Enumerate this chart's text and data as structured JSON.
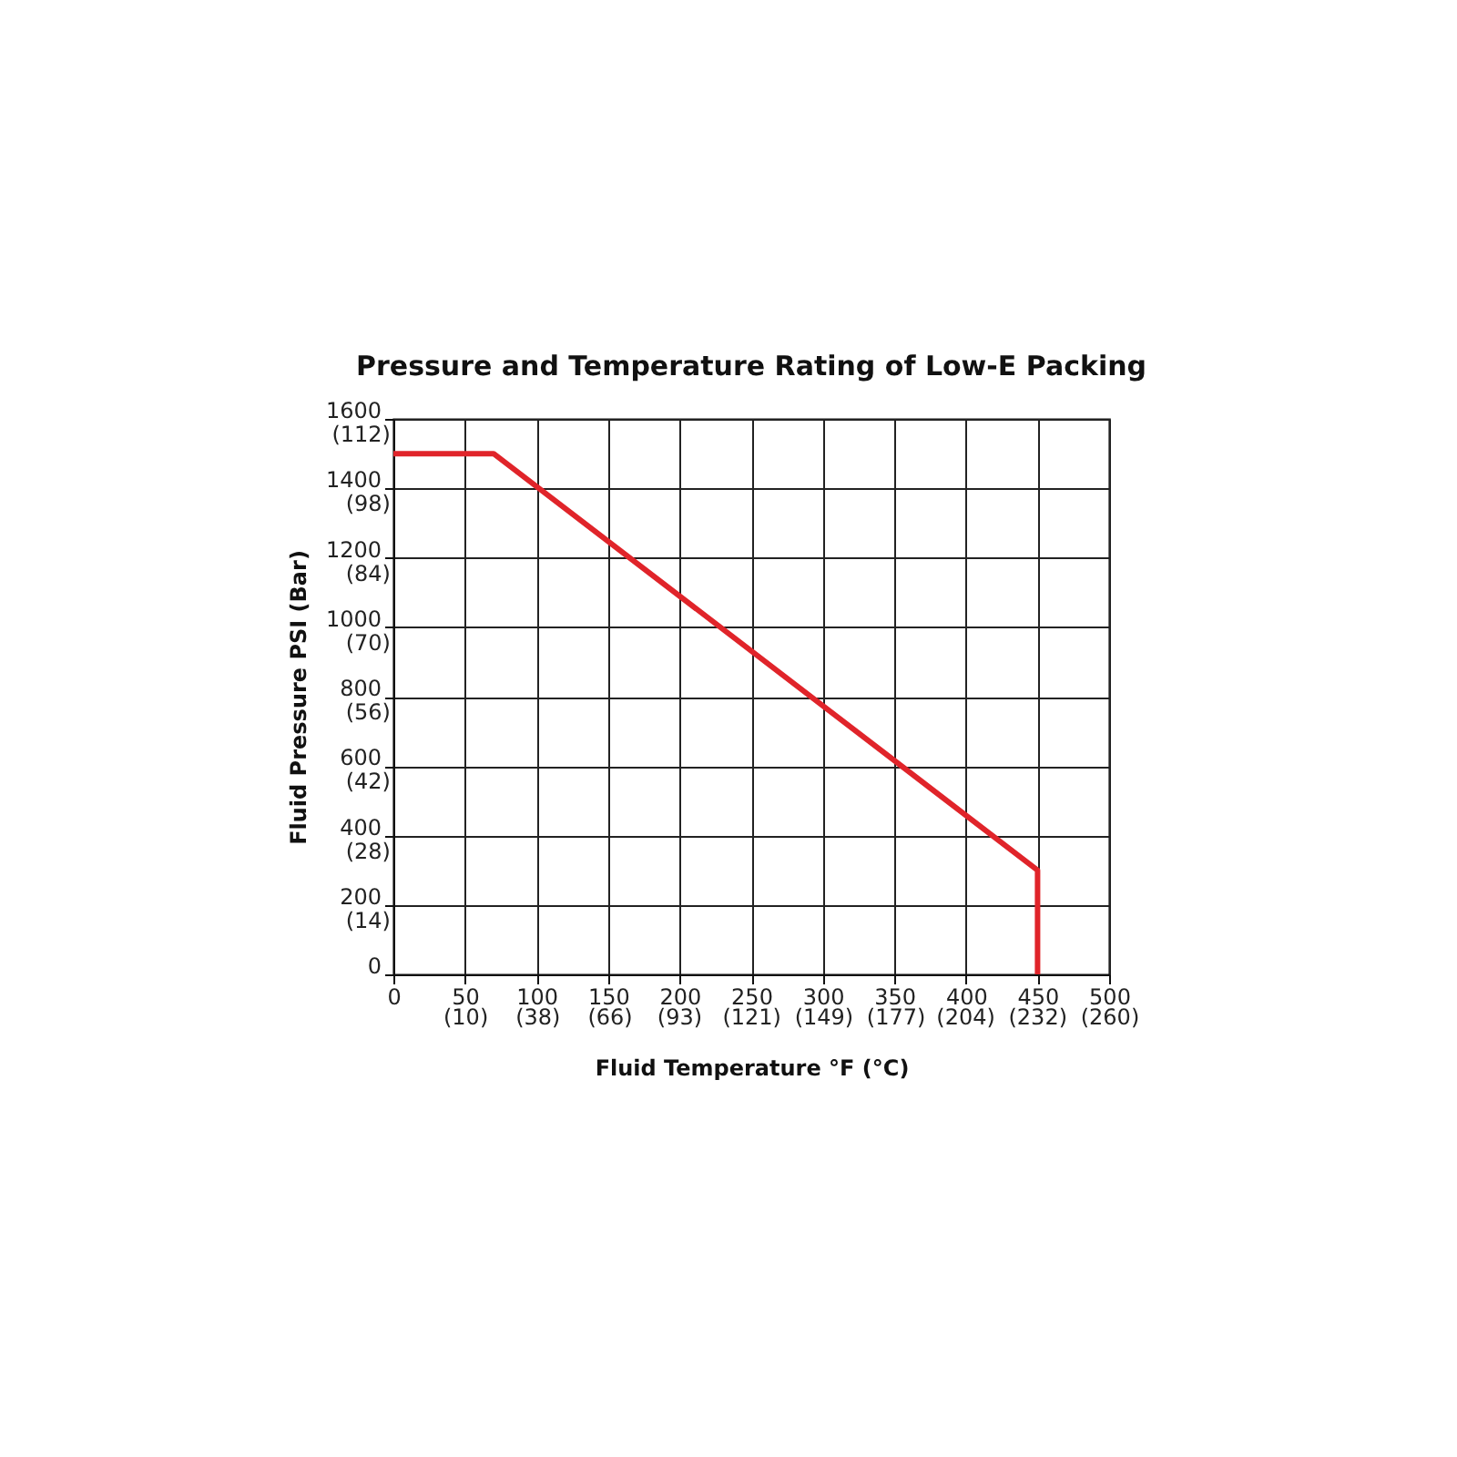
{
  "chart_data": {
    "type": "line",
    "title": "Pressure and Temperature Rating of Low-E Packing",
    "xlabel": "Fluid Temperature °F (°C)",
    "ylabel": "Fluid Pressure PSI (Bar)",
    "series": [
      {
        "x": [
          0,
          70,
          450,
          450
        ],
        "values": [
          1500,
          1500,
          300,
          0
        ],
        "color": "#e0242a"
      }
    ],
    "xlim": [
      0,
      500
    ],
    "xticks": [
      0,
      50,
      100,
      150,
      200,
      250,
      300,
      350,
      400,
      450,
      500
    ],
    "x2lim": [
      -17.78,
      260
    ],
    "x2ticks": [
      {
        "value": 10,
        "label": "(10)"
      },
      {
        "value": 38,
        "label": "(38)"
      },
      {
        "value": 66,
        "label": "(66)"
      },
      {
        "value": 93,
        "label": "(93)"
      },
      {
        "value": 121,
        "label": "(121)"
      },
      {
        "value": 149,
        "label": "(149)"
      },
      {
        "value": 177,
        "label": "(177)"
      },
      {
        "value": 204,
        "label": "(204)"
      },
      {
        "value": 232,
        "label": "(232)"
      },
      {
        "value": 260,
        "label": "(260)"
      }
    ],
    "ylim": [
      0,
      1600
    ],
    "yticks": [
      0,
      200,
      400,
      600,
      800,
      1000,
      1200,
      1400,
      1600
    ],
    "y2lim": [
      0,
      112
    ],
    "y2ticks": [
      {
        "value": 14,
        "label": "(14)"
      },
      {
        "value": 28,
        "label": "(28)"
      },
      {
        "value": 42,
        "label": "(42)"
      },
      {
        "value": 56,
        "label": "(56)"
      },
      {
        "value": 70,
        "label": "(70)"
      },
      {
        "value": 84,
        "label": "(84)"
      },
      {
        "value": 98,
        "label": "(98)"
      },
      {
        "value": 112,
        "label": "(112)"
      }
    ],
    "grid": true,
    "marker": "none",
    "line_style": "solid"
  }
}
